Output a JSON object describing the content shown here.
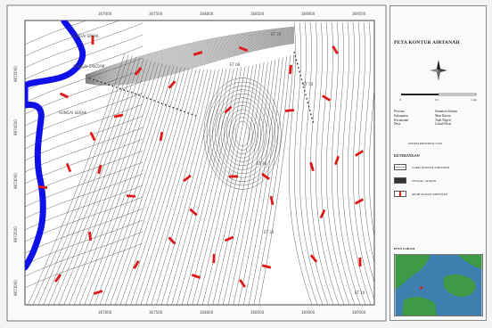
{
  "map": {
    "place_labels": [
      {
        "text": "SUNGAI SIMAK"
      },
      {
        "text": "SUNGAI ZAKZAM"
      },
      {
        "text": "SUNGAI SERAK"
      }
    ],
    "contour_labels": [
      {
        "text": "ET 70"
      },
      {
        "text": "ET 60"
      },
      {
        "text": "ET 50"
      },
      {
        "text": "ET 40"
      },
      {
        "text": "ET 30"
      },
      {
        "text": "ET 10"
      }
    ],
    "top_ticks": [
      "367000",
      "367500",
      "368000",
      "368500",
      "369000",
      "369500"
    ],
    "bottom_ticks": [
      "367000",
      "367500",
      "368000",
      "368500",
      "369000",
      "369500"
    ],
    "left_ticks": [
      "9875000",
      "9874500",
      "9874000",
      "9873500",
      "9873000"
    ],
    "colors": {
      "river": "#1010e8",
      "arrow": "#e01818",
      "contour": "#555555",
      "background": "#f4f4f4"
    }
  },
  "legend": {
    "title": "PETA KONTUR AIRTANAH",
    "compass_icon": "north-arrow-icon",
    "scale_ticks": [
      "0",
      "0.5",
      "1 km"
    ],
    "info": [
      {
        "key": "Provinsi",
        "value": "Sumatera Selatan"
      },
      {
        "key": "Kabupaten",
        "value": "Musi Rawas"
      },
      {
        "key": "Kecamatan",
        "value": "Tuah Negeri"
      },
      {
        "key": "Desa",
        "value": "Lubuk Besar"
      }
    ],
    "projection": "SISTEM PROYEKSI UTM",
    "keterangan": "KETERANGAN",
    "items": [
      {
        "label": "GARIS KONTUR AIRTANAH"
      },
      {
        "label": "SUNGAI / ALIRAN"
      },
      {
        "label": "ARAH ALIRAN AIRTANAH"
      }
    ],
    "inset_title": "PETA LOKASI",
    "inset_colors": {
      "sea": "#3f7fb0",
      "land": "#3f9a46"
    }
  }
}
